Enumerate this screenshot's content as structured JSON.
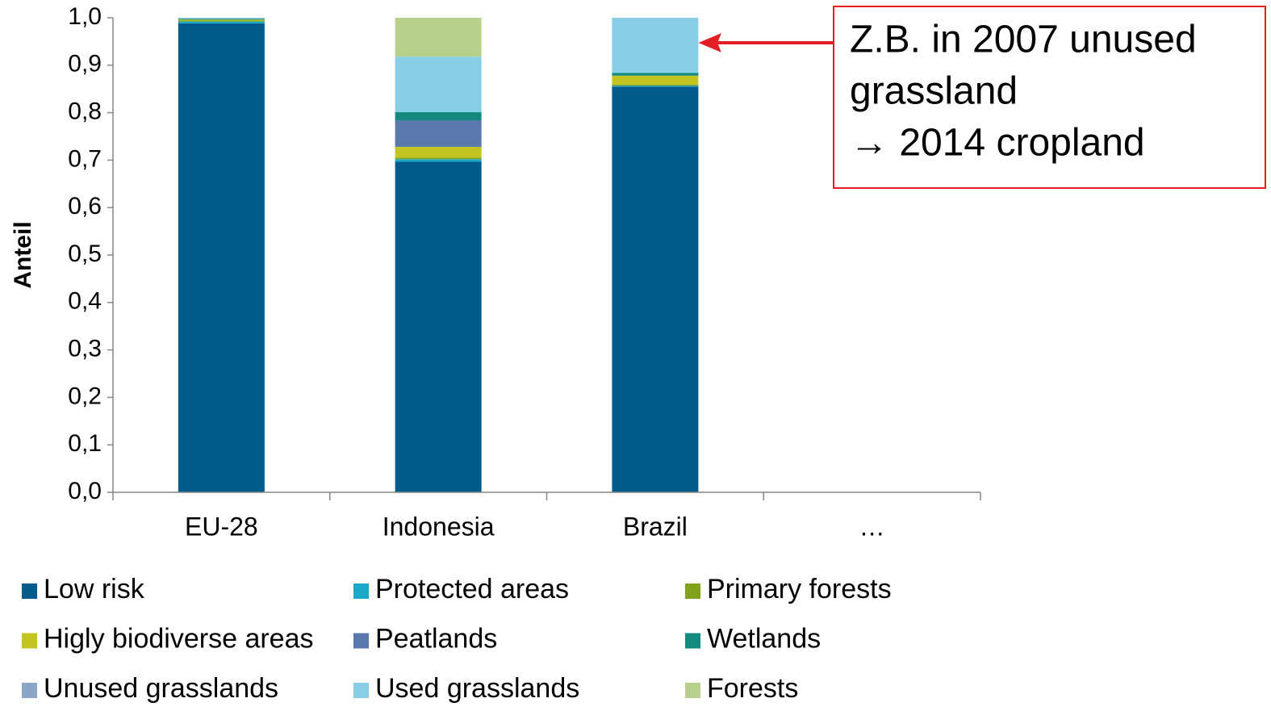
{
  "chart_data": {
    "type": "stacked_bar",
    "y_label": "Anteil",
    "categories": [
      "EU-28",
      "Indonesia",
      "Brazil",
      "…"
    ],
    "series": [
      {
        "name": "Low risk",
        "color": "#005a8c",
        "values": [
          0.988,
          0.697,
          0.855,
          null
        ]
      },
      {
        "name": "Protected areas",
        "color": "#1ba8c9",
        "values": [
          0.004,
          0.005,
          0.002,
          null
        ]
      },
      {
        "name": "Primary forests",
        "color": "#7fa31c",
        "values": [
          0.002,
          0.003,
          0.002,
          null
        ]
      },
      {
        "name": "Higly biodiverse areas",
        "color": "#c3c321",
        "values": [
          0.002,
          0.023,
          0.019,
          null
        ]
      },
      {
        "name": "Peatlands",
        "color": "#5b78ad",
        "values": [
          0,
          0.056,
          0,
          null
        ]
      },
      {
        "name": "Wetlands",
        "color": "#138a7d",
        "values": [
          0.002,
          0.017,
          0.006,
          null
        ]
      },
      {
        "name": "Unused grasslands",
        "color": "#8aa6c9",
        "values": [
          0,
          0,
          0,
          null
        ]
      },
      {
        "name": "Used grasslands",
        "color": "#86cfe6",
        "values": [
          0.002,
          0.117,
          0.116,
          null
        ]
      },
      {
        "name": "Forests",
        "color": "#b7d18c",
        "values": [
          0,
          0.082,
          0,
          null
        ]
      }
    ],
    "ylim": [
      0,
      1
    ],
    "yticks": [
      {
        "value": 0,
        "label": "0,0"
      },
      {
        "value": 0.1,
        "label": "0,1"
      },
      {
        "value": 0.2,
        "label": "0,2"
      },
      {
        "value": 0.3,
        "label": "0,3"
      },
      {
        "value": 0.4,
        "label": "0,4"
      },
      {
        "value": 0.5,
        "label": "0,5"
      },
      {
        "value": 0.6,
        "label": "0,6"
      },
      {
        "value": 0.7,
        "label": "0,7"
      },
      {
        "value": 0.8,
        "label": "0,8"
      },
      {
        "value": 0.9,
        "label": "0,9"
      },
      {
        "value": 1,
        "label": "1,0"
      }
    ],
    "annotation": {
      "lines": [
        "Z.B. in 2007 unused",
        "grassland",
        "→ 2014 cropland"
      ],
      "color": "#e31e24"
    },
    "legend": "bottom"
  }
}
